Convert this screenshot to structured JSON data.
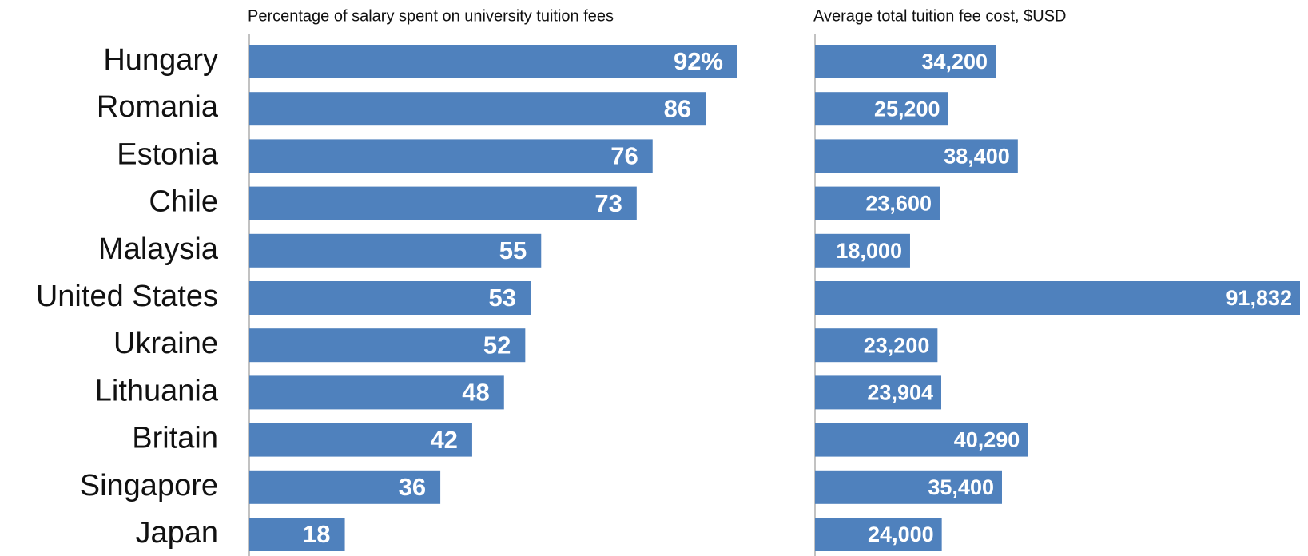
{
  "chart_data": [
    {
      "type": "bar",
      "orientation": "horizontal",
      "title": "Percentage of salary spent on university tuition fees",
      "categories": [
        "Hungary",
        "Romania",
        "Estonia",
        "Chile",
        "Malaysia",
        "United States",
        "Ukraine",
        "Lithuania",
        "Britain",
        "Singapore",
        "Japan"
      ],
      "values": [
        92,
        86,
        76,
        73,
        55,
        53,
        52,
        48,
        42,
        36,
        18
      ],
      "value_labels": [
        "92%",
        "86",
        "76",
        "73",
        "55",
        "53",
        "52",
        "48",
        "42",
        "36",
        "18"
      ],
      "color": "#4f81bd"
    },
    {
      "type": "bar",
      "orientation": "horizontal",
      "title": "Average total tuition fee cost, $USD",
      "values": [
        34200,
        25200,
        38400,
        23600,
        18000,
        91832,
        23200,
        23904,
        40290,
        35400,
        24000
      ],
      "value_labels": [
        "34,200",
        "25,200",
        "38,400",
        "23,600",
        "18,000",
        "91,832",
        "23,200",
        "23,904",
        "40,290",
        "35,400",
        "24,000"
      ],
      "color": "#4f81bd"
    }
  ]
}
